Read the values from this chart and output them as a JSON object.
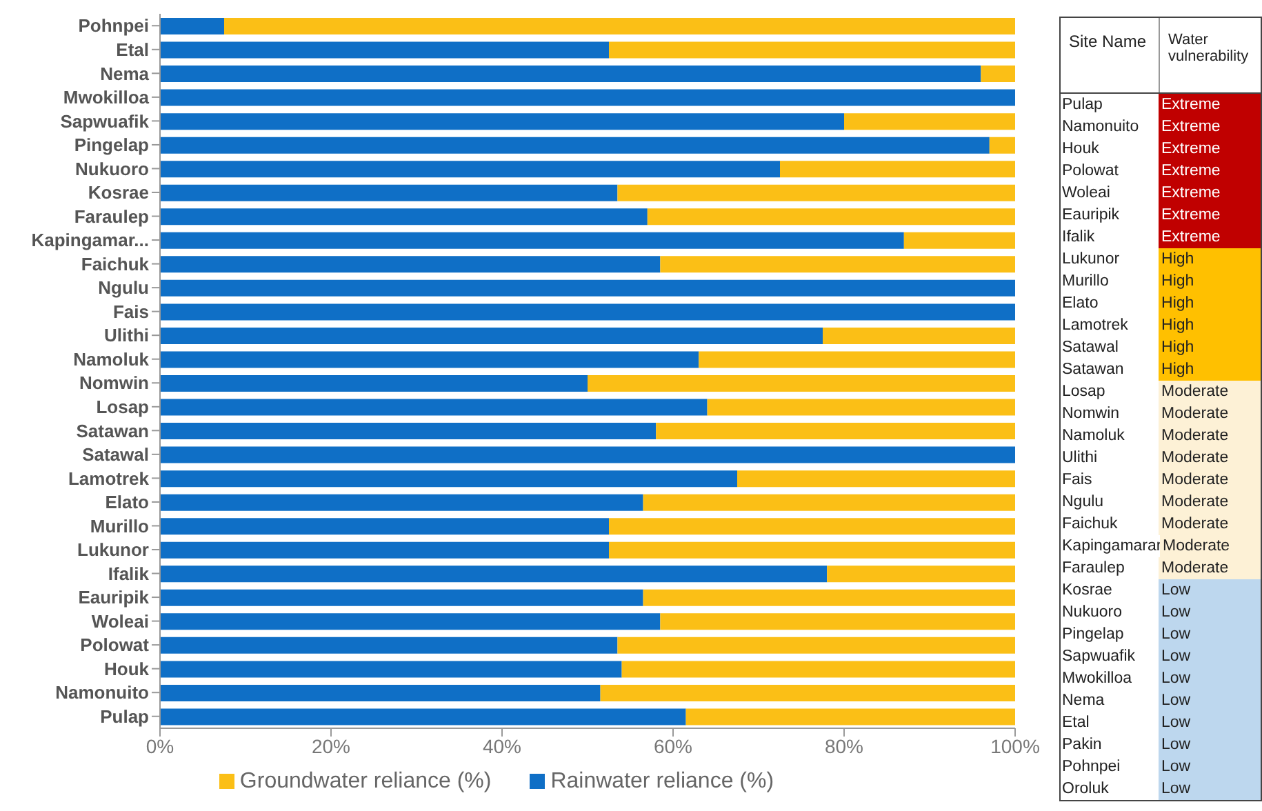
{
  "chart_data": [
    {
      "type": "bar",
      "orientation": "horizontal",
      "stacked": true,
      "categories": [
        "Pohnpei",
        "Etal",
        "Nema",
        "Mwokilloa",
        "Sapwuafik",
        "Pingelap",
        "Nukuoro",
        "Kosrae",
        "Faraulep",
        "Kapingamar...",
        "Faichuk",
        "Ngulu",
        "Fais",
        "Ulithi",
        "Namoluk",
        "Nomwin",
        "Losap",
        "Satawan",
        "Satawal",
        "Lamotrek",
        "Elato",
        "Murillo",
        "Lukunor",
        "Ifalik",
        "Eauripik",
        "Woleai",
        "Polowat",
        "Houk",
        "Namonuito",
        "Pulap"
      ],
      "series": [
        {
          "name": "Rainwater reliance (%)",
          "color": "#0f6fc6",
          "values": [
            7.5,
            52.5,
            96,
            100,
            80,
            97,
            72.5,
            53.5,
            57,
            87,
            58.5,
            100,
            100,
            77.5,
            63,
            50,
            64,
            58,
            100,
            67.5,
            56.5,
            52.5,
            52.5,
            78,
            56.5,
            58.5,
            53.5,
            54,
            51.5,
            61.5
          ]
        },
        {
          "name": "Groundwater reliance (%)",
          "color": "#fbbf16",
          "values": [
            92.5,
            47.5,
            4,
            0,
            20,
            3,
            27.5,
            46.5,
            43,
            13,
            41.5,
            0,
            0,
            22.5,
            37,
            50,
            36,
            42,
            0,
            32.5,
            43.5,
            47.5,
            47.5,
            22,
            43.5,
            41.5,
            46.5,
            46,
            48.5,
            38.5
          ]
        }
      ],
      "xlim": [
        0,
        100
      ],
      "xticks": [
        {
          "value": 0,
          "label": "0%"
        },
        {
          "value": 20,
          "label": "20%"
        },
        {
          "value": 40,
          "label": "40%"
        },
        {
          "value": 60,
          "label": "60%"
        },
        {
          "value": 80,
          "label": "80%"
        },
        {
          "value": 100,
          "label": "100%"
        }
      ],
      "legend": "bottom"
    },
    {
      "type": "other",
      "categories": [
        "Site Name",
        "Water vulnerability"
      ],
      "y_categories": [
        "Pulap",
        "Namonuito",
        "Houk",
        "Polowat",
        "Woleai",
        "Eauripik",
        "Ifalik",
        "Lukunor",
        "Murillo",
        "Elato",
        "Lamotrek",
        "Satawal",
        "Satawan",
        "Losap",
        "Nomwin",
        "Namoluk",
        "Ulithi",
        "Fais",
        "Ngulu",
        "Faichuk",
        "Kapingamarar",
        "Faraulep",
        "Kosrae",
        "Nukuoro",
        "Pingelap",
        "Sapwuafik",
        "Mwokilloa",
        "Nema",
        "Etal",
        "Pakin",
        "Pohnpei",
        "Oroluk"
      ],
      "cell_labels": [
        [
          "Extreme"
        ],
        [
          "Extreme"
        ],
        [
          "Extreme"
        ],
        [
          "Extreme"
        ],
        [
          "Extreme"
        ],
        [
          "Extreme"
        ],
        [
          "Extreme"
        ],
        [
          "High"
        ],
        [
          "High"
        ],
        [
          "High"
        ],
        [
          "High"
        ],
        [
          "High"
        ],
        [
          "High"
        ],
        [
          "Moderate"
        ],
        [
          "Moderate"
        ],
        [
          "Moderate"
        ],
        [
          "Moderate"
        ],
        [
          "Moderate"
        ],
        [
          "Moderate"
        ],
        [
          "Moderate"
        ],
        [
          "Moderate"
        ],
        [
          "Moderate"
        ],
        [
          "Low"
        ],
        [
          "Low"
        ],
        [
          "Low"
        ],
        [
          "Low"
        ],
        [
          "Low"
        ],
        [
          "Low"
        ],
        [
          "Low"
        ],
        [
          "Low"
        ],
        [
          "Low"
        ],
        [
          "Low"
        ]
      ],
      "colors": [
        "#c00000",
        "#c00000",
        "#c00000",
        "#c00000",
        "#c00000",
        "#c00000",
        "#c00000",
        "#ffc000",
        "#ffc000",
        "#ffc000",
        "#ffc000",
        "#ffc000",
        "#ffc000",
        "#fdf1d6",
        "#fdf1d6",
        "#fdf1d6",
        "#fdf1d6",
        "#fdf1d6",
        "#fdf1d6",
        "#fdf1d6",
        "#fdf1d6",
        "#fdf1d6",
        "#bdd7ee",
        "#bdd7ee",
        "#bdd7ee",
        "#bdd7ee",
        "#bdd7ee",
        "#bdd7ee",
        "#bdd7ee",
        "#bdd7ee",
        "#bdd7ee",
        "#bdd7ee"
      ]
    }
  ]
}
